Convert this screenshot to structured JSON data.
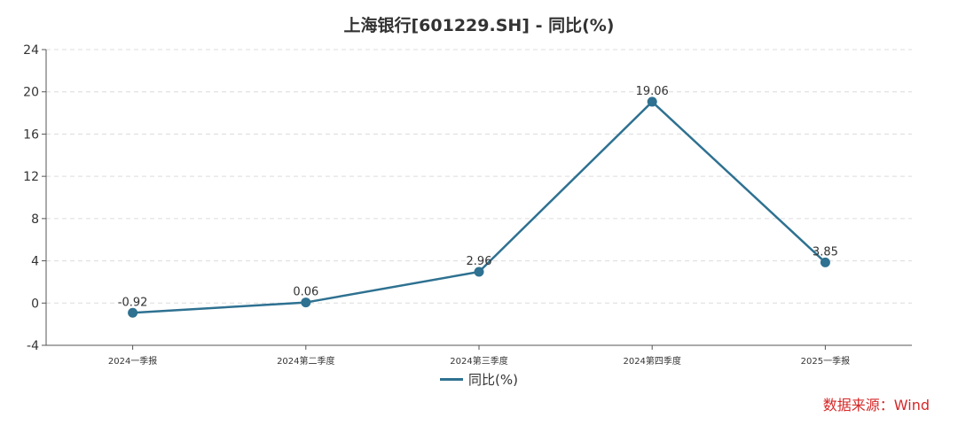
{
  "chart_data": {
    "type": "line",
    "title": "上海银行[601229.SH] - 同比(%)",
    "categories": [
      "2024一季报",
      "2024第二季度",
      "2024第三季度",
      "2024第四季度",
      "2025一季报"
    ],
    "series": [
      {
        "name": "同比(%)",
        "values": [
          -0.92,
          0.06,
          2.96,
          19.06,
          3.85
        ],
        "labels": [
          "-0.92",
          "0.06",
          "2.96",
          "19.06",
          "3.85"
        ],
        "color": "#2e7191"
      }
    ],
    "ylim": [
      -4,
      24
    ],
    "yticks": [
      -4,
      0,
      4,
      8,
      12,
      16,
      20,
      24
    ],
    "grid": true,
    "legend_position": "bottom-center"
  },
  "source_note": "数据来源：Wind"
}
